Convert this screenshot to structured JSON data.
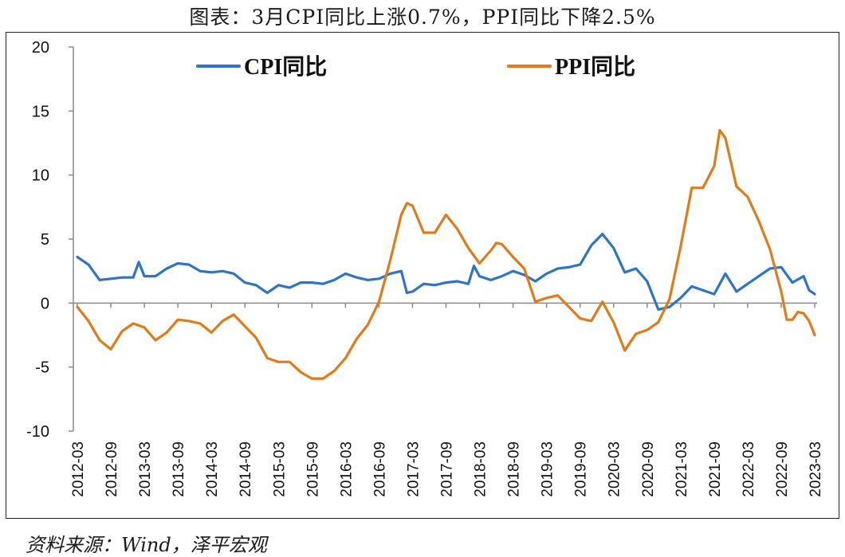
{
  "title": "图表：3月CPI同比上涨0.7%，PPI同比下降2.5%",
  "source": "资料来源：Wind，泽平宏观",
  "chart_data": {
    "type": "line",
    "title": "图表：3月CPI同比上涨0.7%，PPI同比下降2.5%",
    "xlabel": "",
    "ylabel": "",
    "ylim": [
      -10,
      20
    ],
    "yticks": [
      "20",
      "15",
      "10",
      "5",
      "0",
      "-5",
      "-10"
    ],
    "x_ticks": [
      "2012-03",
      "2012-09",
      "2013-03",
      "2013-09",
      "2014-03",
      "2014-09",
      "2015-03",
      "2015-09",
      "2016-03",
      "2016-09",
      "2017-03",
      "2017-09",
      "2018-03",
      "2018-09",
      "2019-03",
      "2019-09",
      "2020-03",
      "2020-09",
      "2021-03",
      "2021-09",
      "2022-03",
      "2022-09",
      "2023-03"
    ],
    "legend_position": "top",
    "grid": false,
    "series": [
      {
        "name": "CPI同比",
        "color": "#2e75c6",
        "points": [
          [
            "2012-03",
            3.6
          ],
          [
            "2012-05",
            3.0
          ],
          [
            "2012-07",
            1.8
          ],
          [
            "2012-09",
            1.9
          ],
          [
            "2012-11",
            2.0
          ],
          [
            "2013-01",
            2.0
          ],
          [
            "2013-02",
            3.2
          ],
          [
            "2013-03",
            2.1
          ],
          [
            "2013-05",
            2.1
          ],
          [
            "2013-07",
            2.7
          ],
          [
            "2013-09",
            3.1
          ],
          [
            "2013-11",
            3.0
          ],
          [
            "2014-01",
            2.5
          ],
          [
            "2014-03",
            2.4
          ],
          [
            "2014-05",
            2.5
          ],
          [
            "2014-07",
            2.3
          ],
          [
            "2014-09",
            1.6
          ],
          [
            "2014-11",
            1.4
          ],
          [
            "2015-01",
            0.8
          ],
          [
            "2015-03",
            1.4
          ],
          [
            "2015-05",
            1.2
          ],
          [
            "2015-07",
            1.6
          ],
          [
            "2015-09",
            1.6
          ],
          [
            "2015-11",
            1.5
          ],
          [
            "2016-01",
            1.8
          ],
          [
            "2016-03",
            2.3
          ],
          [
            "2016-05",
            2.0
          ],
          [
            "2016-07",
            1.8
          ],
          [
            "2016-09",
            1.9
          ],
          [
            "2016-11",
            2.3
          ],
          [
            "2017-01",
            2.5
          ],
          [
            "2017-02",
            0.8
          ],
          [
            "2017-03",
            0.9
          ],
          [
            "2017-05",
            1.5
          ],
          [
            "2017-07",
            1.4
          ],
          [
            "2017-09",
            1.6
          ],
          [
            "2017-11",
            1.7
          ],
          [
            "2018-01",
            1.5
          ],
          [
            "2018-02",
            2.9
          ],
          [
            "2018-03",
            2.1
          ],
          [
            "2018-05",
            1.8
          ],
          [
            "2018-07",
            2.1
          ],
          [
            "2018-09",
            2.5
          ],
          [
            "2018-11",
            2.2
          ],
          [
            "2019-01",
            1.7
          ],
          [
            "2019-03",
            2.3
          ],
          [
            "2019-05",
            2.7
          ],
          [
            "2019-07",
            2.8
          ],
          [
            "2019-09",
            3.0
          ],
          [
            "2019-11",
            4.5
          ],
          [
            "2020-01",
            5.4
          ],
          [
            "2020-03",
            4.3
          ],
          [
            "2020-05",
            2.4
          ],
          [
            "2020-07",
            2.7
          ],
          [
            "2020-09",
            1.7
          ],
          [
            "2020-11",
            -0.5
          ],
          [
            "2021-01",
            -0.3
          ],
          [
            "2021-03",
            0.4
          ],
          [
            "2021-05",
            1.3
          ],
          [
            "2021-07",
            1.0
          ],
          [
            "2021-09",
            0.7
          ],
          [
            "2021-11",
            2.3
          ],
          [
            "2022-01",
            0.9
          ],
          [
            "2022-03",
            1.5
          ],
          [
            "2022-05",
            2.1
          ],
          [
            "2022-07",
            2.7
          ],
          [
            "2022-09",
            2.8
          ],
          [
            "2022-11",
            1.6
          ],
          [
            "2023-01",
            2.1
          ],
          [
            "2023-02",
            1.0
          ],
          [
            "2023-03",
            0.7
          ]
        ]
      },
      {
        "name": "PPI同比",
        "color": "#e07b1a",
        "points": [
          [
            "2012-03",
            -0.3
          ],
          [
            "2012-05",
            -1.4
          ],
          [
            "2012-07",
            -2.9
          ],
          [
            "2012-09",
            -3.6
          ],
          [
            "2012-11",
            -2.2
          ],
          [
            "2013-01",
            -1.6
          ],
          [
            "2013-03",
            -1.9
          ],
          [
            "2013-05",
            -2.9
          ],
          [
            "2013-07",
            -2.3
          ],
          [
            "2013-09",
            -1.3
          ],
          [
            "2013-11",
            -1.4
          ],
          [
            "2014-01",
            -1.6
          ],
          [
            "2014-03",
            -2.3
          ],
          [
            "2014-05",
            -1.4
          ],
          [
            "2014-07",
            -0.9
          ],
          [
            "2014-09",
            -1.8
          ],
          [
            "2014-11",
            -2.7
          ],
          [
            "2015-01",
            -4.3
          ],
          [
            "2015-03",
            -4.6
          ],
          [
            "2015-05",
            -4.6
          ],
          [
            "2015-07",
            -5.4
          ],
          [
            "2015-09",
            -5.9
          ],
          [
            "2015-11",
            -5.9
          ],
          [
            "2016-01",
            -5.3
          ],
          [
            "2016-03",
            -4.3
          ],
          [
            "2016-05",
            -2.8
          ],
          [
            "2016-07",
            -1.7
          ],
          [
            "2016-09",
            0.1
          ],
          [
            "2016-11",
            3.3
          ],
          [
            "2017-01",
            6.9
          ],
          [
            "2017-02",
            7.8
          ],
          [
            "2017-03",
            7.6
          ],
          [
            "2017-05",
            5.5
          ],
          [
            "2017-07",
            5.5
          ],
          [
            "2017-09",
            6.9
          ],
          [
            "2017-11",
            5.8
          ],
          [
            "2018-01",
            4.3
          ],
          [
            "2018-03",
            3.1
          ],
          [
            "2018-05",
            4.1
          ],
          [
            "2018-06",
            4.7
          ],
          [
            "2018-07",
            4.6
          ],
          [
            "2018-09",
            3.6
          ],
          [
            "2018-11",
            2.7
          ],
          [
            "2019-01",
            0.1
          ],
          [
            "2019-03",
            0.4
          ],
          [
            "2019-05",
            0.6
          ],
          [
            "2019-07",
            -0.3
          ],
          [
            "2019-09",
            -1.2
          ],
          [
            "2019-11",
            -1.4
          ],
          [
            "2020-01",
            0.1
          ],
          [
            "2020-03",
            -1.5
          ],
          [
            "2020-05",
            -3.7
          ],
          [
            "2020-07",
            -2.4
          ],
          [
            "2020-09",
            -2.1
          ],
          [
            "2020-11",
            -1.5
          ],
          [
            "2021-01",
            0.3
          ],
          [
            "2021-03",
            4.4
          ],
          [
            "2021-05",
            9.0
          ],
          [
            "2021-07",
            9.0
          ],
          [
            "2021-09",
            10.7
          ],
          [
            "2021-10",
            13.5
          ],
          [
            "2021-11",
            12.9
          ],
          [
            "2022-01",
            9.1
          ],
          [
            "2022-03",
            8.3
          ],
          [
            "2022-05",
            6.4
          ],
          [
            "2022-07",
            4.2
          ],
          [
            "2022-09",
            0.9
          ],
          [
            "2022-10",
            -1.3
          ],
          [
            "2022-11",
            -1.3
          ],
          [
            "2022-12",
            -0.7
          ],
          [
            "2023-01",
            -0.8
          ],
          [
            "2023-02",
            -1.4
          ],
          [
            "2023-03",
            -2.5
          ]
        ]
      }
    ]
  }
}
